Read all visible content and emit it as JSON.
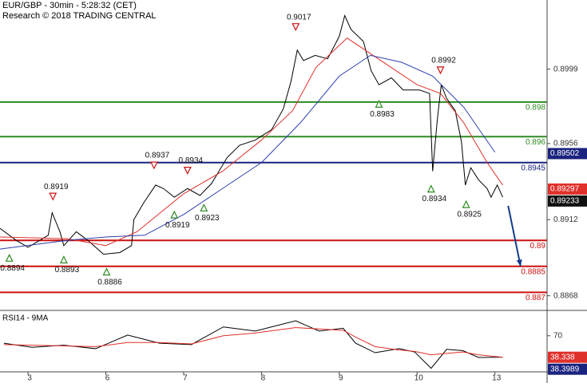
{
  "chart_data": [
    {
      "type": "line",
      "title": "EUR/GBP - 30min - 5:28:32 (CET)",
      "subtitle": "Research © 2018 TRADING CENTRAL",
      "xlim": [
        -0.36,
        6.67
      ],
      "ylim": [
        0.886,
        0.9039
      ],
      "yticks": [
        0.8999,
        0.8956,
        0.8912,
        0.8868
      ],
      "series": [
        {
          "color": "#000000",
          "x": [
            -0.36,
            -0.15,
            0,
            0.26,
            0.31,
            0.41,
            0.46,
            0.62,
            0.77,
            0.97,
            1.18,
            1.33,
            1.36,
            1.49,
            1.64,
            1.74,
            1.88,
            2.05,
            2.21,
            2.36,
            2.56,
            2.72,
            2.92,
            3.13,
            3.28,
            3.38,
            3.46,
            3.54,
            3.69,
            3.85,
            4.0,
            4.07,
            4.15,
            4.31,
            4.41,
            4.51,
            4.67,
            4.82,
            5.03,
            5.16,
            5.2,
            5.26,
            5.31,
            5.38,
            5.49,
            5.57,
            5.62,
            5.69,
            5.79,
            5.9,
            5.95,
            6.03,
            6.1
          ],
          "values": [
            0.8907,
            0.89,
            0.8896,
            0.8903,
            0.8916,
            0.8905,
            0.8897,
            0.8905,
            0.89,
            0.8892,
            0.8893,
            0.8897,
            0.8912,
            0.8922,
            0.8932,
            0.893,
            0.8925,
            0.893,
            0.8926,
            0.8933,
            0.8948,
            0.8955,
            0.8958,
            0.8964,
            0.8976,
            0.8992,
            0.901,
            0.9004,
            0.9007,
            0.9005,
            0.9018,
            0.903,
            0.9022,
            0.9015,
            0.8998,
            0.899,
            0.8994,
            0.8987,
            0.8987,
            0.8985,
            0.894,
            0.897,
            0.899,
            0.8982,
            0.8975,
            0.8957,
            0.8932,
            0.8942,
            0.8935,
            0.893,
            0.8925,
            0.8932,
            0.8925
          ]
        },
        {
          "color": "#e0302a",
          "x": [
            -0.36,
            0.5,
            1.0,
            1.4,
            2.0,
            2.5,
            3.0,
            3.4,
            3.7,
            4.1,
            4.5,
            5.0,
            5.3,
            5.6,
            5.9,
            6.1
          ],
          "values": [
            0.8902,
            0.8901,
            0.8897,
            0.8905,
            0.8927,
            0.894,
            0.8958,
            0.8975,
            0.9,
            0.9017,
            0.9005,
            0.899,
            0.8985,
            0.8968,
            0.8945,
            0.8932
          ]
        },
        {
          "color": "#2c3fb0",
          "x": [
            -0.36,
            0.5,
            1.0,
            1.5,
            2.0,
            2.5,
            3.0,
            3.5,
            4.0,
            4.4,
            4.8,
            5.2,
            5.6,
            6.0
          ],
          "values": [
            0.8895,
            0.89,
            0.8902,
            0.8903,
            0.8915,
            0.893,
            0.8945,
            0.8968,
            0.8995,
            0.9007,
            0.9003,
            0.8995,
            0.8977,
            0.8951
          ]
        },
        {
          "color": "#123c8c",
          "x": [
            6.17,
            6.33
          ],
          "values": [
            0.892,
            0.8885
          ],
          "arrow": true
        }
      ],
      "levels": [
        0.898,
        0.896,
        0.8945,
        0.89,
        0.8885,
        0.887
      ],
      "level_colors": [
        "#2e8b22",
        "#2e8b22",
        "#1a237e",
        "#cc1010",
        "#cc1010",
        "#cc1010"
      ],
      "price_tags": [
        {
          "value": 0.89502,
          "color": "#1a237e"
        },
        {
          "value": 0.89297,
          "color": "#e0302a"
        },
        {
          "value": 0.89233,
          "color": "#111111"
        }
      ],
      "annotations": [
        {
          "label": "0.8894",
          "x": -0.24,
          "value": 0.8894,
          "kind": "low"
        },
        {
          "label": "0.8919",
          "x": 0.32,
          "value": 0.8919,
          "kind": "high"
        },
        {
          "label": "0.8893",
          "x": 0.46,
          "value": 0.8893,
          "kind": "low"
        },
        {
          "label": "0.8886",
          "x": 1.01,
          "value": 0.8886,
          "kind": "low"
        },
        {
          "label": "0.8937",
          "x": 1.62,
          "value": 0.8937,
          "kind": "high"
        },
        {
          "label": "0.8919",
          "x": 1.88,
          "value": 0.8919,
          "kind": "low"
        },
        {
          "label": "0.8934",
          "x": 2.05,
          "value": 0.8934,
          "kind": "high"
        },
        {
          "label": "0.8923",
          "x": 2.26,
          "value": 0.8923,
          "kind": "low"
        },
        {
          "label": "0.9017",
          "x": 3.44,
          "value": 0.9017,
          "kind": "high"
        },
        {
          "label": "0.8983",
          "x": 4.51,
          "value": 0.8983,
          "kind": "low"
        },
        {
          "label": "0.8934",
          "x": 5.18,
          "value": 0.8934,
          "kind": "low"
        },
        {
          "label": "0.8992",
          "x": 5.3,
          "value": 0.8992,
          "kind": "high"
        },
        {
          "label": "0.8925",
          "x": 5.63,
          "value": 0.8925,
          "kind": "low"
        }
      ]
    },
    {
      "type": "line",
      "title": "RSI14 - 9MA",
      "xlim": [
        -0.36,
        6.67
      ],
      "ylim": [
        18,
        105
      ],
      "yticks": [
        70
      ],
      "xticks": [
        {
          "value": 0,
          "label": "3"
        },
        {
          "value": 1,
          "label": "6"
        },
        {
          "value": 2,
          "label": "7"
        },
        {
          "value": 3,
          "label": "8"
        },
        {
          "value": 4,
          "label": "9"
        },
        {
          "value": 5,
          "label": "10"
        },
        {
          "value": 6,
          "label": "13"
        }
      ],
      "series": [
        {
          "color": "#000000",
          "x": [
            -0.31,
            0.05,
            0.46,
            0.87,
            1.28,
            1.69,
            2.1,
            2.51,
            2.92,
            3.44,
            3.74,
            4.05,
            4.21,
            4.46,
            4.77,
            4.97,
            5.18,
            5.38,
            5.59,
            5.79,
            6.1
          ],
          "values": [
            59,
            53,
            56,
            51,
            71,
            59,
            57,
            83,
            77,
            92,
            77,
            81,
            59,
            45,
            51,
            46,
            22,
            50,
            48,
            38,
            38.4
          ]
        },
        {
          "color": "#e0302a",
          "x": [
            -0.31,
            0.05,
            0.46,
            0.87,
            1.28,
            1.69,
            2.1,
            2.51,
            2.92,
            3.44,
            3.74,
            4.05,
            4.21,
            4.46,
            4.77,
            4.97,
            5.18,
            5.38,
            5.59,
            5.79,
            6.1
          ],
          "values": [
            57,
            56,
            55,
            54,
            60,
            60,
            58,
            70,
            74,
            82,
            80,
            78,
            68,
            54,
            49,
            47,
            42,
            44,
            46,
            42,
            38.3
          ]
        }
      ],
      "price_tags": [
        {
          "value": 38.338,
          "color": "#e0302a"
        },
        {
          "value": 38.3989,
          "color": "#1a237e"
        }
      ]
    }
  ]
}
